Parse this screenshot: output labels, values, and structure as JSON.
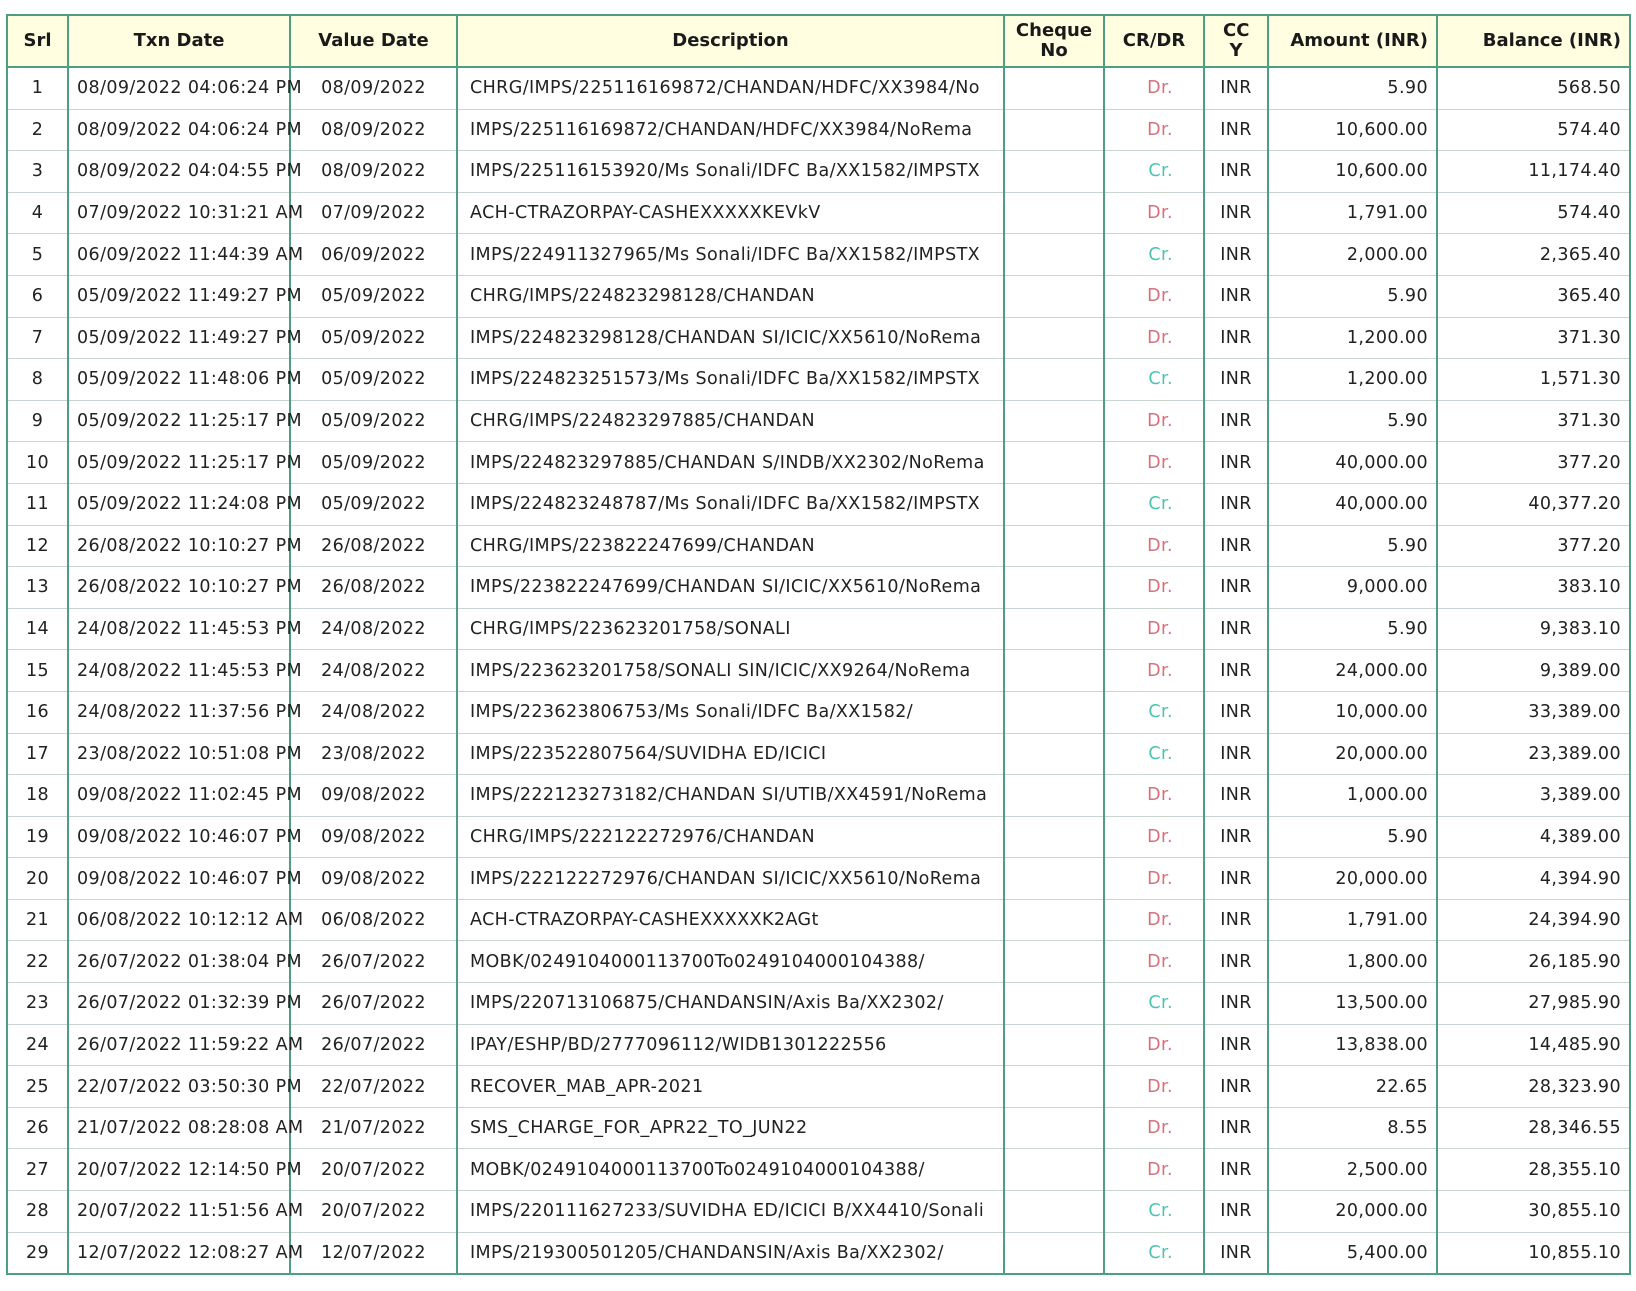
{
  "headers": {
    "srl": "Srl",
    "txn_date": "Txn Date",
    "value_date": "Value Date",
    "description": "Description",
    "cheque_no": "Cheque No",
    "crdr": "CR/DR",
    "ccy": "CC Y",
    "amount": "Amount (INR)",
    "balance": "Balance (INR)"
  },
  "colors": {
    "border": "#4e9e7f",
    "header_bg": "#fffee0",
    "debit": "#d8707c",
    "credit": "#4cc3ae"
  },
  "rows": [
    [
      "1",
      "08/09/2022 04:06:24 PM",
      "08/09/2022",
      "CHRG/IMPS/225116169872/CHANDAN/HDFC/XX3984/No",
      "",
      "Dr.",
      "INR",
      "5.90",
      "568.50"
    ],
    [
      "2",
      "08/09/2022 04:06:24 PM",
      "08/09/2022",
      "IMPS/225116169872/CHANDAN/HDFC/XX3984/NoRema",
      "",
      "Dr.",
      "INR",
      "10,600.00",
      "574.40"
    ],
    [
      "3",
      "08/09/2022 04:04:55 PM",
      "08/09/2022",
      "IMPS/225116153920/Ms Sonali/IDFC Ba/XX1582/IMPSTX",
      "",
      "Cr.",
      "INR",
      "10,600.00",
      "11,174.40"
    ],
    [
      "4",
      "07/09/2022 10:31:21 AM",
      "07/09/2022",
      "ACH-CTRAZORPAY-CASHEXXXXXKEVkV",
      "",
      "Dr.",
      "INR",
      "1,791.00",
      "574.40"
    ],
    [
      "5",
      "06/09/2022 11:44:39 AM",
      "06/09/2022",
      "IMPS/224911327965/Ms Sonali/IDFC Ba/XX1582/IMPSTX",
      "",
      "Cr.",
      "INR",
      "2,000.00",
      "2,365.40"
    ],
    [
      "6",
      "05/09/2022 11:49:27 PM",
      "05/09/2022",
      "CHRG/IMPS/224823298128/CHANDAN",
      "",
      "Dr.",
      "INR",
      "5.90",
      "365.40"
    ],
    [
      "7",
      "05/09/2022 11:49:27 PM",
      "05/09/2022",
      "IMPS/224823298128/CHANDAN SI/ICIC/XX5610/NoRema",
      "",
      "Dr.",
      "INR",
      "1,200.00",
      "371.30"
    ],
    [
      "8",
      "05/09/2022 11:48:06 PM",
      "05/09/2022",
      "IMPS/224823251573/Ms Sonali/IDFC Ba/XX1582/IMPSTX",
      "",
      "Cr.",
      "INR",
      "1,200.00",
      "1,571.30"
    ],
    [
      "9",
      "05/09/2022 11:25:17 PM",
      "05/09/2022",
      "CHRG/IMPS/224823297885/CHANDAN",
      "",
      "Dr.",
      "INR",
      "5.90",
      "371.30"
    ],
    [
      "10",
      "05/09/2022 11:25:17 PM",
      "05/09/2022",
      "IMPS/224823297885/CHANDAN S/INDB/XX2302/NoRema",
      "",
      "Dr.",
      "INR",
      "40,000.00",
      "377.20"
    ],
    [
      "11",
      "05/09/2022 11:24:08 PM",
      "05/09/2022",
      "IMPS/224823248787/Ms Sonali/IDFC Ba/XX1582/IMPSTX",
      "",
      "Cr.",
      "INR",
      "40,000.00",
      "40,377.20"
    ],
    [
      "12",
      "26/08/2022 10:10:27 PM",
      "26/08/2022",
      "CHRG/IMPS/223822247699/CHANDAN",
      "",
      "Dr.",
      "INR",
      "5.90",
      "377.20"
    ],
    [
      "13",
      "26/08/2022 10:10:27 PM",
      "26/08/2022",
      "IMPS/223822247699/CHANDAN SI/ICIC/XX5610/NoRema",
      "",
      "Dr.",
      "INR",
      "9,000.00",
      "383.10"
    ],
    [
      "14",
      "24/08/2022 11:45:53 PM",
      "24/08/2022",
      "CHRG/IMPS/223623201758/SONALI",
      "",
      "Dr.",
      "INR",
      "5.90",
      "9,383.10"
    ],
    [
      "15",
      "24/08/2022 11:45:53 PM",
      "24/08/2022",
      "IMPS/223623201758/SONALI SIN/ICIC/XX9264/NoRema",
      "",
      "Dr.",
      "INR",
      "24,000.00",
      "9,389.00"
    ],
    [
      "16",
      "24/08/2022 11:37:56 PM",
      "24/08/2022",
      "IMPS/223623806753/Ms Sonali/IDFC Ba/XX1582/",
      "",
      "Cr.",
      "INR",
      "10,000.00",
      "33,389.00"
    ],
    [
      "17",
      "23/08/2022 10:51:08 PM",
      "23/08/2022",
      "IMPS/223522807564/SUVIDHA ED/ICICI",
      "",
      "Cr.",
      "INR",
      "20,000.00",
      "23,389.00"
    ],
    [
      "18",
      "09/08/2022 11:02:45 PM",
      "09/08/2022",
      "IMPS/222123273182/CHANDAN SI/UTIB/XX4591/NoRema",
      "",
      "Dr.",
      "INR",
      "1,000.00",
      "3,389.00"
    ],
    [
      "19",
      "09/08/2022 10:46:07 PM",
      "09/08/2022",
      "CHRG/IMPS/222122272976/CHANDAN",
      "",
      "Dr.",
      "INR",
      "5.90",
      "4,389.00"
    ],
    [
      "20",
      "09/08/2022 10:46:07 PM",
      "09/08/2022",
      "IMPS/222122272976/CHANDAN SI/ICIC/XX5610/NoRema",
      "",
      "Dr.",
      "INR",
      "20,000.00",
      "4,394.90"
    ],
    [
      "21",
      "06/08/2022 10:12:12 AM",
      "06/08/2022",
      "ACH-CTRAZORPAY-CASHEXXXXXK2AGt",
      "",
      "Dr.",
      "INR",
      "1,791.00",
      "24,394.90"
    ],
    [
      "22",
      "26/07/2022 01:38:04 PM",
      "26/07/2022",
      "MOBK/0249104000113700To0249104000104388/",
      "",
      "Dr.",
      "INR",
      "1,800.00",
      "26,185.90"
    ],
    [
      "23",
      "26/07/2022 01:32:39 PM",
      "26/07/2022",
      "IMPS/220713106875/CHANDANSIN/Axis Ba/XX2302/",
      "",
      "Cr.",
      "INR",
      "13,500.00",
      "27,985.90"
    ],
    [
      "24",
      "26/07/2022 11:59:22 AM",
      "26/07/2022",
      "IPAY/ESHP/BD/2777096112/WIDB1301222556",
      "",
      "Dr.",
      "INR",
      "13,838.00",
      "14,485.90"
    ],
    [
      "25",
      "22/07/2022 03:50:30 PM",
      "22/07/2022",
      "RECOVER_MAB_APR-2021",
      "",
      "Dr.",
      "INR",
      "22.65",
      "28,323.90"
    ],
    [
      "26",
      "21/07/2022 08:28:08 AM",
      "21/07/2022",
      "SMS_CHARGE_FOR_APR22_TO_JUN22",
      "",
      "Dr.",
      "INR",
      "8.55",
      "28,346.55"
    ],
    [
      "27",
      "20/07/2022 12:14:50 PM",
      "20/07/2022",
      "MOBK/0249104000113700To0249104000104388/",
      "",
      "Dr.",
      "INR",
      "2,500.00",
      "28,355.10"
    ],
    [
      "28",
      "20/07/2022 11:51:56 AM",
      "20/07/2022",
      "IMPS/220111627233/SUVIDHA ED/ICICI B/XX4410/Sonali",
      "",
      "Cr.",
      "INR",
      "20,000.00",
      "30,855.10"
    ],
    [
      "29",
      "12/07/2022 12:08:27 AM",
      "12/07/2022",
      "IMPS/219300501205/CHANDANSIN/Axis Ba/XX2302/",
      "",
      "Cr.",
      "INR",
      "5,400.00",
      "10,855.10"
    ]
  ]
}
